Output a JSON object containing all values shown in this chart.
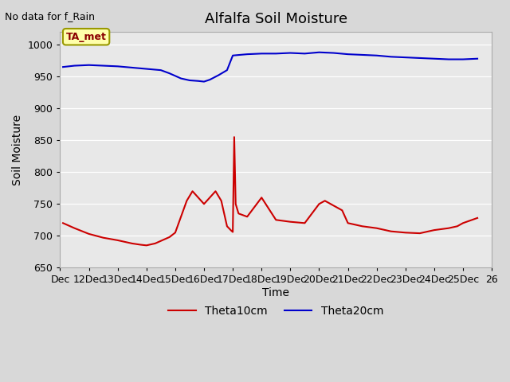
{
  "title": "Alfalfa Soil Moisture",
  "top_left_note": "No data for f_Rain",
  "ylabel": "Soil Moisture",
  "xlabel": "Time",
  "ylim": [
    650,
    1020
  ],
  "yticks": [
    650,
    700,
    750,
    800,
    850,
    900,
    950,
    1000
  ],
  "xlim": [
    0,
    15
  ],
  "xtick_positions": [
    0,
    1,
    2,
    3,
    4,
    5,
    6,
    7,
    8,
    9,
    10,
    11,
    12,
    13,
    14,
    15
  ],
  "xtick_labels": [
    "Dec",
    "12Dec",
    "13Dec",
    "14Dec",
    "15Dec",
    "16Dec",
    "17Dec",
    "18Dec",
    "19Dec",
    "20Dec",
    "21Dec",
    "22Dec",
    "23Dec",
    "24Dec",
    "25Dec",
    "26"
  ],
  "bg_color": "#e8e8e8",
  "legend_entries": [
    "Theta10cm",
    "Theta20cm"
  ],
  "legend_colors": [
    "#cc0000",
    "#0000cc"
  ],
  "annotation_text": "TA_met",
  "annotation_bg": "#ffffaa",
  "annotation_border": "#999900",
  "theta10_x": [
    0.1,
    0.5,
    1.0,
    1.5,
    2.0,
    2.3,
    2.5,
    2.8,
    3.0,
    3.3,
    3.5,
    3.8,
    4.0,
    4.2,
    4.4,
    4.6,
    4.8,
    5.0,
    5.2,
    5.4,
    5.6,
    5.8,
    5.95,
    6.0,
    6.05,
    6.1,
    6.2,
    6.5,
    7.0,
    7.5,
    8.0,
    8.5,
    9.0,
    9.2,
    9.4,
    9.6,
    9.8,
    10.0,
    10.5,
    11.0,
    11.5,
    12.0,
    12.5,
    13.0,
    13.5,
    13.8,
    14.0,
    14.5
  ],
  "theta10_y": [
    720,
    712,
    703,
    697,
    693,
    690,
    688,
    686,
    685,
    688,
    692,
    698,
    705,
    730,
    755,
    770,
    760,
    750,
    760,
    770,
    755,
    715,
    708,
    706,
    855,
    750,
    735,
    730,
    760,
    725,
    722,
    720,
    750,
    755,
    750,
    745,
    740,
    720,
    715,
    712,
    707,
    705,
    704,
    709,
    712,
    715,
    720,
    728
  ],
  "theta20_x": [
    0.1,
    0.5,
    1.0,
    1.5,
    2.0,
    2.5,
    3.0,
    3.5,
    3.8,
    4.0,
    4.2,
    4.5,
    4.8,
    5.0,
    5.2,
    5.5,
    5.8,
    6.0,
    6.5,
    7.0,
    7.5,
    8.0,
    8.5,
    9.0,
    9.5,
    10.0,
    10.5,
    11.0,
    11.5,
    12.0,
    12.5,
    13.0,
    13.5,
    14.0,
    14.5
  ],
  "theta20_y": [
    965,
    967,
    968,
    967,
    966,
    964,
    962,
    960,
    955,
    951,
    947,
    944,
    943,
    942,
    945,
    952,
    960,
    983,
    985,
    986,
    986,
    987,
    986,
    988,
    987,
    985,
    984,
    983,
    981,
    980,
    979,
    978,
    977,
    977,
    978
  ]
}
